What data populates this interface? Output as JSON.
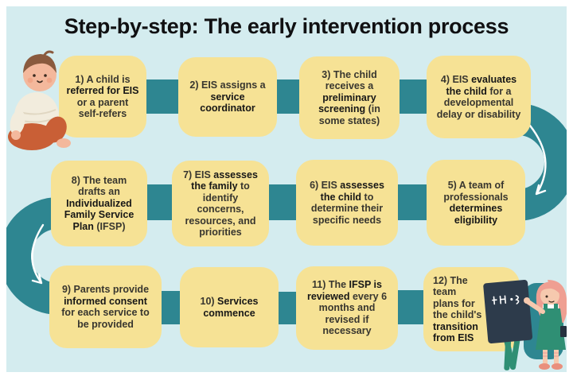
{
  "title": "Step-by-step: The early intervention process",
  "colors": {
    "background": "#d4ecef",
    "frame": "#ffffff",
    "box": "#f6e295",
    "connector_teal": "#2e8691",
    "title_text": "#101012",
    "body_text": "#38362f",
    "bold_text": "#171717",
    "easel_green": "#2f8f74",
    "board_navy": "#2d3b4b",
    "hair_pink": "#ef9f92",
    "baby_pants_orange": "#c95f36",
    "baby_sweater_cream": "#f2ecdd",
    "skin": "#f4b89c"
  },
  "steps": [
    {
      "num": 1,
      "segments": [
        {
          "t": "1) A child is ",
          "b": 0
        },
        {
          "t": "referred for EIS",
          "b": 1
        },
        {
          "t": " or a parent self-refers",
          "b": 0
        }
      ]
    },
    {
      "num": 2,
      "segments": [
        {
          "t": "2) EIS assigns a ",
          "b": 0
        },
        {
          "t": "service coordinator",
          "b": 1
        }
      ]
    },
    {
      "num": 3,
      "segments": [
        {
          "t": "3) The child receives a ",
          "b": 0
        },
        {
          "t": "preliminary screening",
          "b": 1
        },
        {
          "t": " (in some states)",
          "b": 0
        }
      ]
    },
    {
      "num": 4,
      "segments": [
        {
          "t": "4) EIS ",
          "b": 0
        },
        {
          "t": "evaluates the child",
          "b": 1
        },
        {
          "t": " for a developmental delay or disability",
          "b": 0
        }
      ]
    },
    {
      "num": 5,
      "segments": [
        {
          "t": "5) A team of professionals ",
          "b": 0
        },
        {
          "t": "determines eligibility",
          "b": 1
        }
      ]
    },
    {
      "num": 6,
      "segments": [
        {
          "t": "6) EIS ",
          "b": 0
        },
        {
          "t": "assesses the child",
          "b": 1
        },
        {
          "t": " to determine their specific needs",
          "b": 0
        }
      ]
    },
    {
      "num": 7,
      "segments": [
        {
          "t": "7) EIS ",
          "b": 0
        },
        {
          "t": "assesses the family",
          "b": 1
        },
        {
          "t": " to identify concerns, resources, and priorities",
          "b": 0
        }
      ]
    },
    {
      "num": 8,
      "segments": [
        {
          "t": "8) The team drafts an ",
          "b": 0
        },
        {
          "t": "Individualized Family Service Plan",
          "b": 1
        },
        {
          "t": " (IFSP)",
          "b": 0
        }
      ]
    },
    {
      "num": 9,
      "segments": [
        {
          "t": "9) Parents provide ",
          "b": 0
        },
        {
          "t": "informed consent",
          "b": 1
        },
        {
          "t": " for each service to be provided",
          "b": 0
        }
      ]
    },
    {
      "num": 10,
      "segments": [
        {
          "t": "10) ",
          "b": 0
        },
        {
          "t": "Services commence",
          "b": 1
        }
      ]
    },
    {
      "num": 11,
      "segments": [
        {
          "t": "11) The ",
          "b": 0
        },
        {
          "t": "IFSP is reviewed",
          "b": 1
        },
        {
          "t": " every 6 months and revised if necessary",
          "b": 0
        }
      ]
    },
    {
      "num": 12,
      "segments": [
        {
          "t": "12) The team plans for the child's ",
          "b": 0
        },
        {
          "t": "transition from EIS",
          "b": 1
        }
      ]
    }
  ],
  "flow_order": {
    "row1": [
      1,
      2,
      3,
      4
    ],
    "row2": [
      8,
      7,
      6,
      5
    ],
    "row3": [
      9,
      10,
      11,
      12
    ]
  },
  "illustrations": {
    "baby": "toddler crawling beside step 1",
    "teacher": "teacher with pink hair writing on chalkboard easel beside step 12"
  }
}
